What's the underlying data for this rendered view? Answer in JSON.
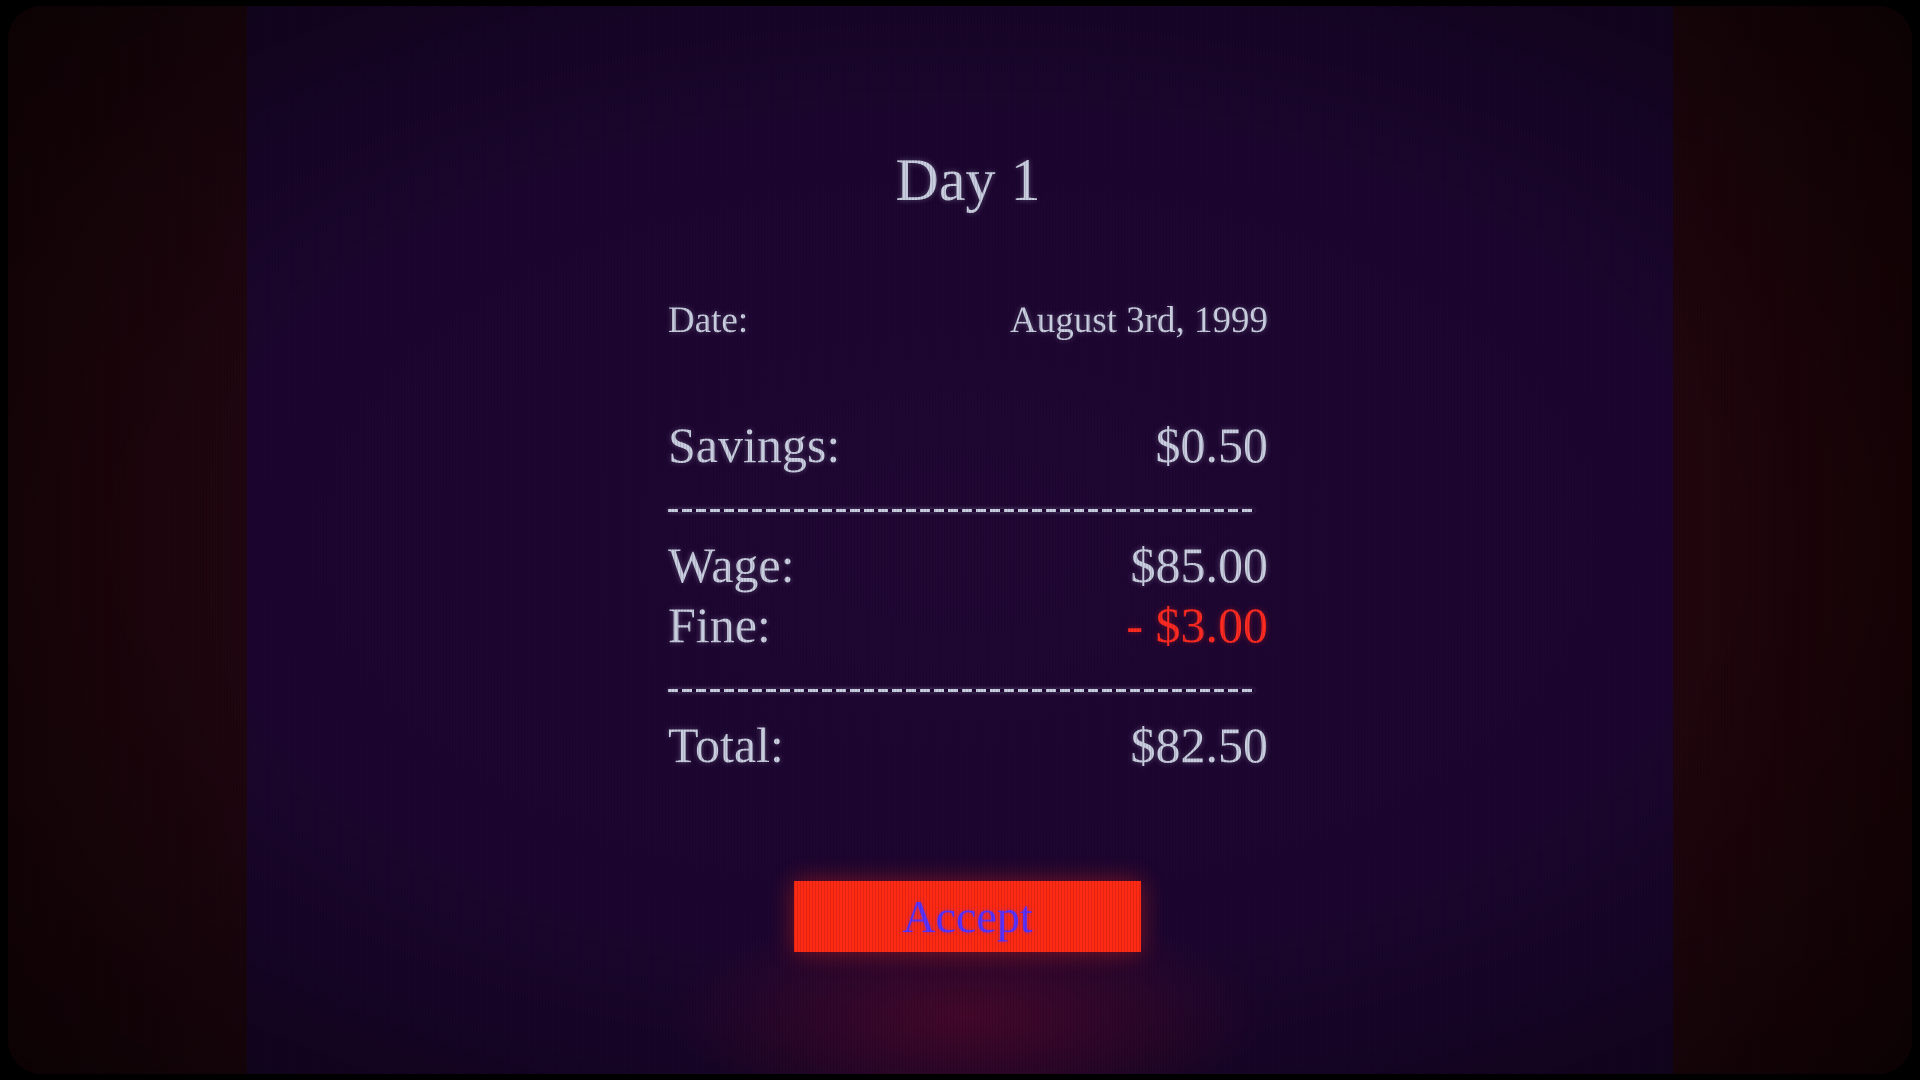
{
  "title": "Day 1",
  "date": {
    "label": "Date:",
    "value": "August 3rd, 1999"
  },
  "savings": {
    "label": "Savings:",
    "value": "$0.50"
  },
  "separator": "-----------------------------------------",
  "wage": {
    "label": "Wage:",
    "value": "$85.00"
  },
  "fine": {
    "label": "Fine:",
    "value": "- $3.00"
  },
  "total": {
    "label": "Total:",
    "value": "$82.50"
  },
  "accept_label": "Accept",
  "colors": {
    "background": "#1c0630",
    "text": "#c9cde0",
    "negative": "#ff2a22",
    "button": "#ff2a14",
    "button_text": "#5a32ff"
  }
}
